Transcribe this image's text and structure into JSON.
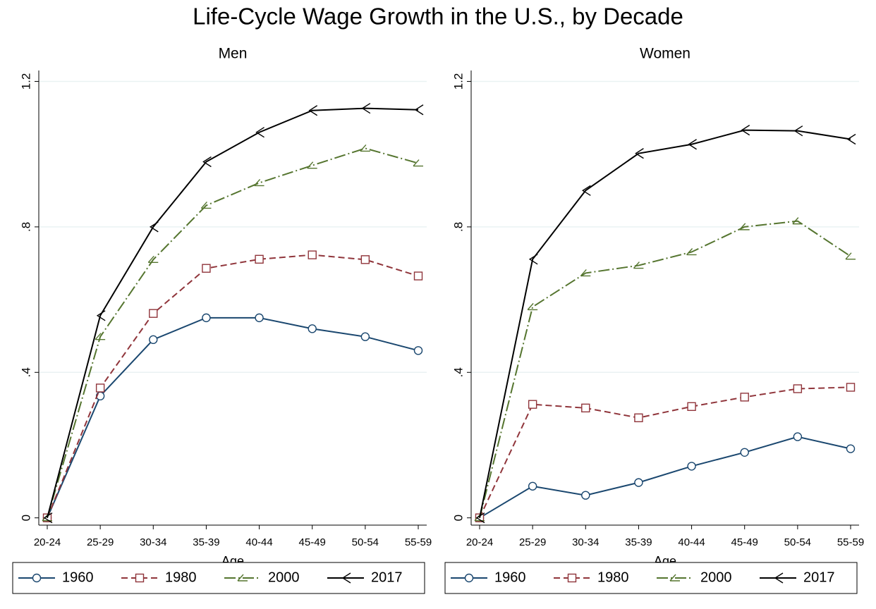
{
  "title": "Life-Cycle Wage Growth in the U.S., by Decade",
  "chart_data": [
    {
      "type": "line",
      "title": "Men",
      "x_label": "Age",
      "categories": [
        "20-24",
        "25-29",
        "30-34",
        "35-39",
        "40-44",
        "45-49",
        "50-54",
        "55-59"
      ],
      "series": [
        {
          "name": "1960",
          "color": "#1a476f",
          "marker": "circle",
          "dash": "solid",
          "values": [
            0,
            0.335,
            0.49,
            0.55,
            0.55,
            0.52,
            0.498,
            0.46
          ]
        },
        {
          "name": "1980",
          "color": "#90353b",
          "marker": "square",
          "dash": "dashed",
          "values": [
            0,
            0.357,
            0.562,
            0.686,
            0.711,
            0.723,
            0.71,
            0.665
          ]
        },
        {
          "name": "2000",
          "color": "#55752f",
          "marker": "triangle",
          "dash": "dashdot",
          "values": [
            0,
            0.498,
            0.71,
            0.859,
            0.921,
            0.969,
            1.016,
            0.975
          ]
        },
        {
          "name": "2017",
          "color": "#000000",
          "marker": "chevron",
          "dash": "solid",
          "values": [
            0,
            0.556,
            0.8,
            0.979,
            1.06,
            1.12,
            1.126,
            1.122
          ]
        }
      ],
      "ylim": [
        -0.02,
        1.23
      ],
      "yticks": [
        0,
        {
          "value": 0.4,
          "label": ".4"
        },
        {
          "value": 0.8,
          "label": ".8"
        },
        1.2
      ],
      "grid": true,
      "legend": "bottom"
    },
    {
      "type": "line",
      "title": "Women",
      "x_label": "Age",
      "categories": [
        "20-24",
        "25-29",
        "30-34",
        "35-39",
        "40-44",
        "45-49",
        "50-54",
        "55-59"
      ],
      "series": [
        {
          "name": "1960",
          "color": "#1a476f",
          "marker": "circle",
          "dash": "solid",
          "values": [
            0,
            0.087,
            0.062,
            0.097,
            0.142,
            0.18,
            0.223,
            0.19
          ]
        },
        {
          "name": "1980",
          "color": "#90353b",
          "marker": "square",
          "dash": "dashed",
          "values": [
            0,
            0.312,
            0.302,
            0.275,
            0.306,
            0.332,
            0.355,
            0.359
          ]
        },
        {
          "name": "2000",
          "color": "#55752f",
          "marker": "triangle",
          "dash": "dashdot",
          "values": [
            0,
            0.58,
            0.673,
            0.694,
            0.731,
            0.8,
            0.816,
            0.719
          ]
        },
        {
          "name": "2017",
          "color": "#000000",
          "marker": "chevron",
          "dash": "solid",
          "values": [
            0,
            0.711,
            0.9,
            1.002,
            1.027,
            1.066,
            1.064,
            1.041
          ]
        }
      ],
      "ylim": [
        -0.02,
        1.23
      ],
      "yticks": [
        0,
        {
          "value": 0.4,
          "label": ".4"
        },
        {
          "value": 0.8,
          "label": ".8"
        },
        1.2
      ],
      "grid": true,
      "legend": "bottom"
    }
  ]
}
